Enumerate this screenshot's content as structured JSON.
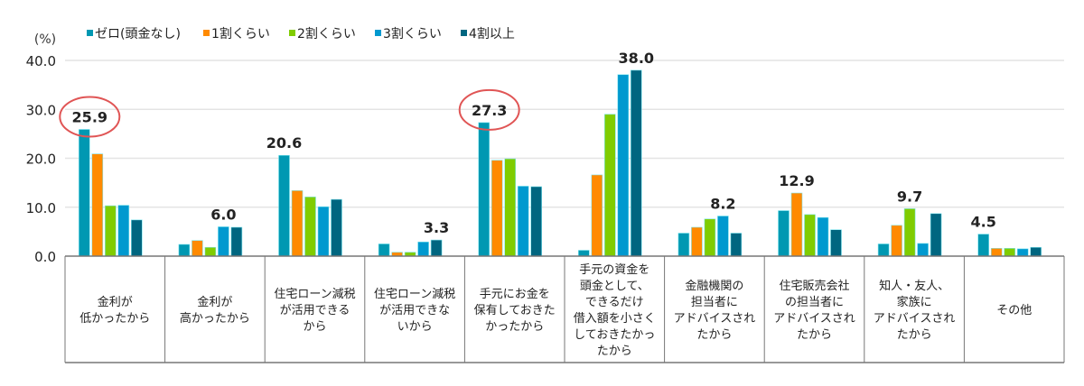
{
  "chart_data": {
    "type": "bar",
    "ylabel": "(%)",
    "ylim": [
      0,
      40
    ],
    "yticks": [
      "0.0",
      "10.0",
      "20.0",
      "30.0",
      "40.0"
    ],
    "grid": true,
    "legend_position": "top",
    "categories": [
      [
        "金利が",
        "低かったから"
      ],
      [
        "金利が",
        "高かったから"
      ],
      [
        "住宅ローン減税",
        "が活用できる",
        "から"
      ],
      [
        "住宅ローン減税",
        "が活用できな",
        "いから"
      ],
      [
        "手元にお金を",
        "保有しておきた",
        "かったから"
      ],
      [
        "手元の資金を",
        "頭金として、",
        "できるだけ",
        "借入額を小さく",
        "しておきたかっ",
        "たから"
      ],
      [
        "金融機関の",
        "担当者に",
        "アドバイスされ",
        "たから"
      ],
      [
        "住宅販売会社",
        "の担当者に",
        "アドバイスされ",
        "たから"
      ],
      [
        "知人・友人、",
        "家族に",
        "アドバイスされ",
        "たから"
      ],
      [
        "その他"
      ]
    ],
    "series": [
      {
        "name": "ゼロ(頭金なし)",
        "color": "#0098B2",
        "values": [
          25.9,
          2.4,
          20.6,
          2.5,
          27.3,
          1.2,
          4.7,
          9.3,
          2.5,
          4.5
        ]
      },
      {
        "name": "1割くらい",
        "color": "#FF8A00",
        "values": [
          20.9,
          3.2,
          13.4,
          0.8,
          19.6,
          16.6,
          5.9,
          12.9,
          6.3,
          1.6
        ]
      },
      {
        "name": "2割くらい",
        "color": "#80CC00",
        "values": [
          10.3,
          1.8,
          12.1,
          0.8,
          19.9,
          29.0,
          7.6,
          8.5,
          9.7,
          1.6
        ]
      },
      {
        "name": "3割くらい",
        "color": "#0099CF",
        "values": [
          10.4,
          6.0,
          10.1,
          2.9,
          14.3,
          37.1,
          8.2,
          7.9,
          2.6,
          1.5
        ]
      },
      {
        "name": "4割以上",
        "color": "#006680",
        "values": [
          7.4,
          5.9,
          11.6,
          3.3,
          14.2,
          38.0,
          4.7,
          5.4,
          8.7,
          1.8
        ]
      }
    ],
    "data_labels": [
      {
        "category": 0,
        "series": 0,
        "text": "25.9",
        "circled": true
      },
      {
        "category": 1,
        "series": 3,
        "text": "6.0"
      },
      {
        "category": 2,
        "series": 0,
        "text": "20.6"
      },
      {
        "category": 3,
        "series": 4,
        "text": "3.3"
      },
      {
        "category": 4,
        "series": 0,
        "text": "27.3",
        "circled": true
      },
      {
        "category": 5,
        "series": 4,
        "text": "38.0"
      },
      {
        "category": 6,
        "series": 3,
        "text": "8.2"
      },
      {
        "category": 7,
        "series": 1,
        "text": "12.9"
      },
      {
        "category": 8,
        "series": 2,
        "text": "9.7"
      },
      {
        "category": 9,
        "series": 0,
        "text": "4.5"
      }
    ],
    "annotation_color": "#E05555"
  }
}
